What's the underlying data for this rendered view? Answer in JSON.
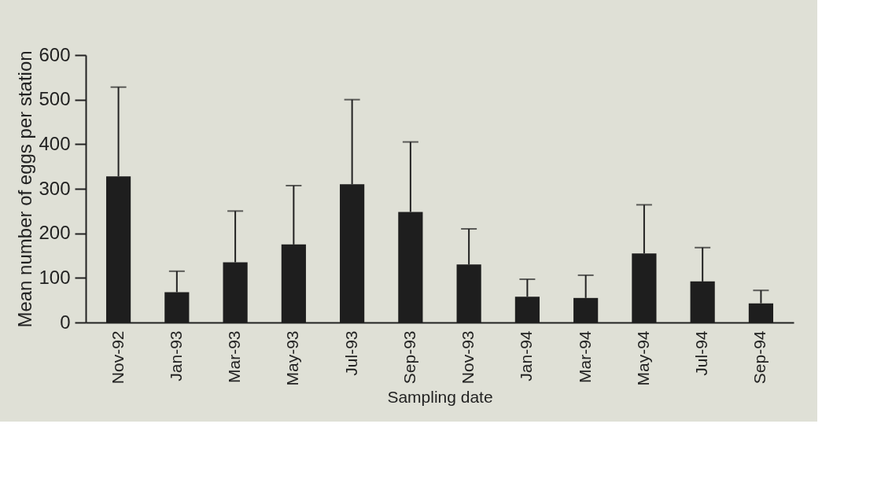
{
  "chart_data": {
    "type": "bar",
    "xlabel": "Sampling date",
    "ylabel": "Mean number of eggs per station",
    "categories": [
      "Nov-92",
      "Jan-93",
      "Mar-93",
      "May-93",
      "Jul-93",
      "Sep-93",
      "Nov-93",
      "Jan-94",
      "Mar-94",
      "May-94",
      "Jul-94",
      "Sep-94"
    ],
    "values": [
      328,
      68,
      135,
      175,
      310,
      248,
      130,
      58,
      55,
      155,
      92,
      43
    ],
    "errors": [
      [
        328,
        528
      ],
      [
        68,
        115
      ],
      [
        135,
        250
      ],
      [
        175,
        307
      ],
      [
        310,
        500
      ],
      [
        248,
        405
      ],
      [
        130,
        210
      ],
      [
        58,
        97
      ],
      [
        55,
        106
      ],
      [
        155,
        264
      ],
      [
        92,
        168
      ],
      [
        43,
        72
      ]
    ],
    "color": "#1e1e1e",
    "ylim": [
      0,
      600
    ],
    "yticks": [
      0,
      100,
      200,
      300,
      400,
      500,
      600
    ],
    "grid": false
  }
}
